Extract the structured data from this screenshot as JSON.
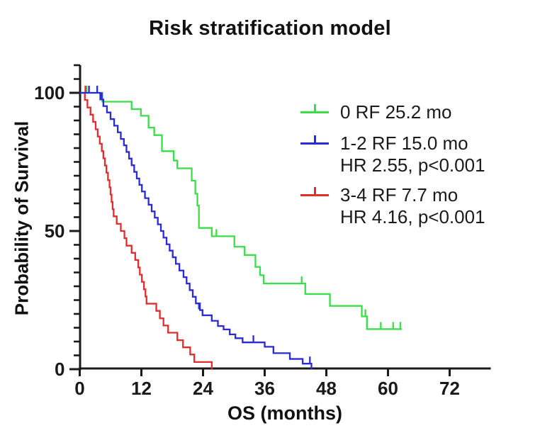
{
  "title": "Risk stratification model",
  "legend": {
    "items": [
      {
        "line1": "0 RF 25.2 mo",
        "line2": "",
        "color": "#3ade49"
      },
      {
        "line1": "1-2 RF 15.0 mo",
        "line2": "HR 2.55, p<0.001",
        "color": "#2b2bd5"
      },
      {
        "line1": "3-4 RF 7.7 mo",
        "line2": "HR 4.16, p<0.001",
        "color": "#e02e2c"
      }
    ]
  },
  "chart_data": {
    "type": "line",
    "subtype": "kaplan-meier-survival",
    "title": "Risk stratification model",
    "xlabel": "OS (months)",
    "ylabel": "Probability of Survival",
    "xlim": [
      0,
      80
    ],
    "xticks": [
      0,
      12,
      24,
      36,
      48,
      60,
      72
    ],
    "ylim": [
      0,
      110
    ],
    "yticks_labeled": [
      0,
      50,
      100
    ],
    "ytick_minor_step": 5,
    "grid": false,
    "legend_position": "upper-right-inside",
    "series": [
      {
        "name": "0 RF",
        "median_months": 25.2,
        "hr_text": "",
        "color": "#3ade49",
        "start": [
          0,
          100
        ],
        "end_month": 62.7,
        "steps": [
          [
            4.4,
            96.8
          ],
          [
            10.1,
            94.1
          ],
          [
            11.9,
            91.7
          ],
          [
            13.4,
            87.4
          ],
          [
            14.5,
            84.7
          ],
          [
            16.0,
            78.9
          ],
          [
            18.3,
            75.5
          ],
          [
            19.0,
            72.7
          ],
          [
            21.8,
            68.2
          ],
          [
            22.5,
            63.5
          ],
          [
            22.9,
            59.2
          ],
          [
            23.2,
            51.1
          ],
          [
            25.7,
            48.1
          ],
          [
            30.1,
            44.3
          ],
          [
            32.1,
            41.3
          ],
          [
            34.2,
            37.0
          ],
          [
            35.1,
            34.0
          ],
          [
            35.8,
            31.0
          ],
          [
            43.9,
            27.2
          ],
          [
            48.7,
            22.9
          ],
          [
            54.9,
            19.1
          ],
          [
            55.9,
            14.5
          ]
        ],
        "censors": [
          [
            1.3,
            100
          ],
          [
            26.6,
            48.1
          ],
          [
            43.2,
            31.0
          ],
          [
            55.6,
            19.1
          ],
          [
            58.6,
            14.5
          ],
          [
            61.0,
            14.5
          ],
          [
            62.4,
            14.5
          ]
        ]
      },
      {
        "name": "1-2 RF",
        "median_months": 15.0,
        "hr_text": "HR 2.55, p<0.001",
        "color": "#2b2bd5",
        "start": [
          0,
          100
        ],
        "end_month": 45.1,
        "steps": [
          [
            4.0,
            97.6
          ],
          [
            4.6,
            95.2
          ],
          [
            5.3,
            92.9
          ],
          [
            6.0,
            90.5
          ],
          [
            6.7,
            88.1
          ],
          [
            7.4,
            85.7
          ],
          [
            8.0,
            83.3
          ],
          [
            8.6,
            81.0
          ],
          [
            9.1,
            78.6
          ],
          [
            9.6,
            76.2
          ],
          [
            10.1,
            73.8
          ],
          [
            10.6,
            71.4
          ],
          [
            11.1,
            69.0
          ],
          [
            11.6,
            66.7
          ],
          [
            12.1,
            64.3
          ],
          [
            12.7,
            61.9
          ],
          [
            13.4,
            59.5
          ],
          [
            14.0,
            57.1
          ],
          [
            14.6,
            54.8
          ],
          [
            15.2,
            52.4
          ],
          [
            15.8,
            50.0
          ],
          [
            16.3,
            47.6
          ],
          [
            16.9,
            45.2
          ],
          [
            17.5,
            42.9
          ],
          [
            18.1,
            40.5
          ],
          [
            18.7,
            38.1
          ],
          [
            19.4,
            35.7
          ],
          [
            20.2,
            33.3
          ],
          [
            20.8,
            31.0
          ],
          [
            21.4,
            28.6
          ],
          [
            22.0,
            26.2
          ],
          [
            22.6,
            23.8
          ],
          [
            23.4,
            21.4
          ],
          [
            23.9,
            19.5
          ],
          [
            25.7,
            17.5
          ],
          [
            26.9,
            15.6
          ],
          [
            28.0,
            14.4
          ],
          [
            29.2,
            12.6
          ],
          [
            30.3,
            11.2
          ],
          [
            31.7,
            9.7
          ],
          [
            36.0,
            8.1
          ],
          [
            37.7,
            5.8
          ],
          [
            40.9,
            3.7
          ],
          [
            43.4,
            2.0
          ],
          [
            45.1,
            0
          ]
        ],
        "censors": [
          [
            1.8,
            100
          ],
          [
            3.4,
            100
          ],
          [
            4.3,
            97.6
          ],
          [
            23.2,
            21.4
          ],
          [
            33.8,
            9.7
          ],
          [
            44.8,
            2.0
          ]
        ]
      },
      {
        "name": "3-4 RF",
        "median_months": 7.7,
        "hr_text": "HR 4.16, p<0.001",
        "color": "#e02e2c",
        "start": [
          0,
          100
        ],
        "end_month": 25.7,
        "steps": [
          [
            1.0,
            97.4
          ],
          [
            1.5,
            94.7
          ],
          [
            2.1,
            92.1
          ],
          [
            2.6,
            89.5
          ],
          [
            3.1,
            86.8
          ],
          [
            3.5,
            84.2
          ],
          [
            3.9,
            81.6
          ],
          [
            4.3,
            78.9
          ],
          [
            4.6,
            76.3
          ],
          [
            4.9,
            73.7
          ],
          [
            5.2,
            71.1
          ],
          [
            5.5,
            68.4
          ],
          [
            5.8,
            65.8
          ],
          [
            6.0,
            63.2
          ],
          [
            6.2,
            60.5
          ],
          [
            6.4,
            57.9
          ],
          [
            6.6,
            55.3
          ],
          [
            7.2,
            52.6
          ],
          [
            8.0,
            50.0
          ],
          [
            8.7,
            47.4
          ],
          [
            9.1,
            44.7
          ],
          [
            10.1,
            42.1
          ],
          [
            10.8,
            39.5
          ],
          [
            11.4,
            36.8
          ],
          [
            11.7,
            34.2
          ],
          [
            12.1,
            31.6
          ],
          [
            12.5,
            28.9
          ],
          [
            12.8,
            26.3
          ],
          [
            13.0,
            23.7
          ],
          [
            14.9,
            21.1
          ],
          [
            15.6,
            18.4
          ],
          [
            16.3,
            15.8
          ],
          [
            17.2,
            13.2
          ],
          [
            19.0,
            10.5
          ],
          [
            20.1,
            7.9
          ],
          [
            21.5,
            5.3
          ],
          [
            22.3,
            2.6
          ],
          [
            25.7,
            0
          ]
        ],
        "censors": [
          [
            1.1,
            100
          ]
        ]
      }
    ]
  }
}
